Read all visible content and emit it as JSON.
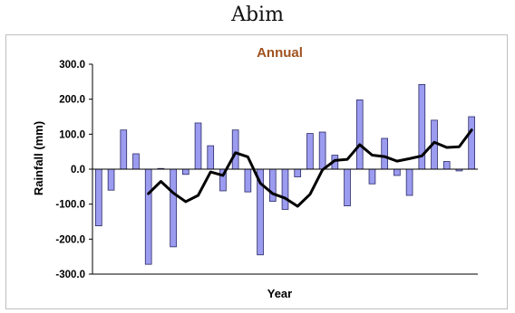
{
  "page_title": "Abim",
  "colors": {
    "bar_fill": "#9b9bf0",
    "bar_stroke": "#2a2a66",
    "line": "#000000",
    "title": "#a0521e"
  },
  "chart_data": {
    "type": "bar",
    "title": "Annual",
    "xlabel": "Year",
    "ylabel": "Rainfall (mm)",
    "ylim": [
      -300,
      300
    ],
    "yticks": [
      300,
      200,
      100,
      0,
      -100,
      -200,
      -300
    ],
    "ytick_labels": [
      "300.0",
      "200.0",
      "100.0",
      "0.0",
      "-100.0",
      "-200.0",
      "-300.0"
    ],
    "grid": false,
    "legend": "none",
    "series": [
      {
        "type": "bar",
        "values": [
          -162,
          -60,
          112,
          44,
          -272,
          2,
          -222,
          -15,
          132,
          67,
          -62,
          112,
          -65,
          -245,
          -92,
          -115,
          -22,
          102,
          106,
          40,
          -105,
          198,
          -42,
          88,
          -18,
          -75,
          242,
          140,
          22,
          -5,
          150
        ]
      },
      {
        "type": "line",
        "values": [
          null,
          null,
          null,
          null,
          -70,
          -35,
          -68,
          -93,
          -75,
          -8,
          -18,
          47,
          35,
          -40,
          -70,
          -83,
          -106,
          -72,
          -2,
          25,
          28,
          70,
          40,
          36,
          23,
          30,
          38,
          77,
          62,
          64,
          112
        ]
      }
    ]
  }
}
